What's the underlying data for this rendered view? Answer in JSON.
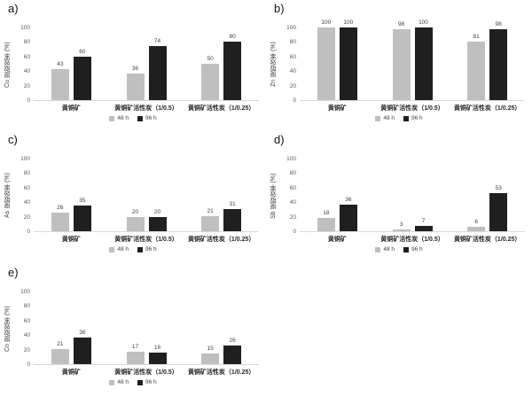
{
  "figure": {
    "background": "#ffffff",
    "description_visible_text_only": true
  },
  "colors": {
    "bar_48h": "#bfbfbf",
    "bar_96h": "#1f1f1f",
    "data_label": "#404040",
    "tick_label": "#595959",
    "category_label": "#262626",
    "axis_line": "#d9d9d9",
    "legend_text": "#404040",
    "panel_label": "#111111"
  },
  "chart_data": [
    {
      "panel": "a)",
      "type": "bar",
      "ylabel": "Cu 提取效率 (%)",
      "ylim": [
        0,
        100
      ],
      "yticks": [
        0,
        20,
        40,
        60,
        80,
        100
      ],
      "grid": false,
      "legend_position": "bottom-center",
      "categories": [
        "黄铜矿",
        "黄铜矿活性炭（1/0.5）",
        "黄铜矿活性炭（1/0.25）"
      ],
      "series": [
        {
          "name": "48 h",
          "color": "#bfbfbf",
          "values": [
            43,
            36,
            50
          ]
        },
        {
          "name": "96 h",
          "color": "#1f1f1f",
          "values": [
            60,
            74,
            80
          ]
        }
      ]
    },
    {
      "panel": "b)",
      "type": "bar",
      "ylabel": "Zn 提取效率 (%)",
      "ylim": [
        0,
        100
      ],
      "yticks": [
        0,
        20,
        40,
        60,
        80,
        100
      ],
      "grid": false,
      "legend_position": "bottom-center",
      "categories": [
        "黄铜矿",
        "黄铜矿活性炭（1/0.5）",
        "黄铜矿活性炭（1/0.25）"
      ],
      "series": [
        {
          "name": "48 h",
          "color": "#bfbfbf",
          "values": [
            100,
            98,
            81
          ]
        },
        {
          "name": "96 h",
          "color": "#1f1f1f",
          "values": [
            100,
            100,
            98
          ]
        }
      ]
    },
    {
      "panel": "c)",
      "type": "bar",
      "ylabel": "As 提取效率 (%)",
      "ylim": [
        0,
        100
      ],
      "yticks": [
        0,
        20,
        40,
        60,
        80,
        100
      ],
      "grid": false,
      "legend_position": "bottom-center",
      "categories": [
        "黄铜矿",
        "黄铜矿活性炭（1/0.5）",
        "黄铜矿活性炭（1/0.25）"
      ],
      "series": [
        {
          "name": "48 h",
          "color": "#bfbfbf",
          "values": [
            26,
            20,
            21
          ]
        },
        {
          "name": "96 h",
          "color": "#1f1f1f",
          "values": [
            35,
            20,
            31
          ]
        }
      ]
    },
    {
      "panel": "d)",
      "type": "bar",
      "ylabel": "Sb 提取效率 (%)",
      "ylim": [
        0,
        100
      ],
      "yticks": [
        0,
        20,
        40,
        60,
        80,
        100
      ],
      "grid": false,
      "legend_position": "bottom-center",
      "categories": [
        "黄铜矿",
        "黄铜矿活性炭（1/0.5）",
        "黄铜矿活性炭（1/0.25）"
      ],
      "series": [
        {
          "name": "48 h",
          "color": "#bfbfbf",
          "values": [
            18,
            3,
            6
          ]
        },
        {
          "name": "96 h",
          "color": "#1f1f1f",
          "values": [
            36,
            7,
            53
          ]
        }
      ]
    },
    {
      "panel": "e)",
      "type": "bar",
      "ylabel": "Co 提取效率 (%)",
      "ylim": [
        0,
        100
      ],
      "yticks": [
        0,
        20,
        40,
        60,
        80,
        100
      ],
      "grid": false,
      "legend_position": "bottom-center",
      "categories": [
        "黄铜矿",
        "黄铜矿活性炭（1/0.5）",
        "黄铜矿活性炭（1/0.25）"
      ],
      "series": [
        {
          "name": "48 h",
          "color": "#bfbfbf",
          "values": [
            21,
            17,
            15
          ]
        },
        {
          "name": "96 h",
          "color": "#1f1f1f",
          "values": [
            36,
            16,
            26
          ]
        }
      ]
    }
  ]
}
